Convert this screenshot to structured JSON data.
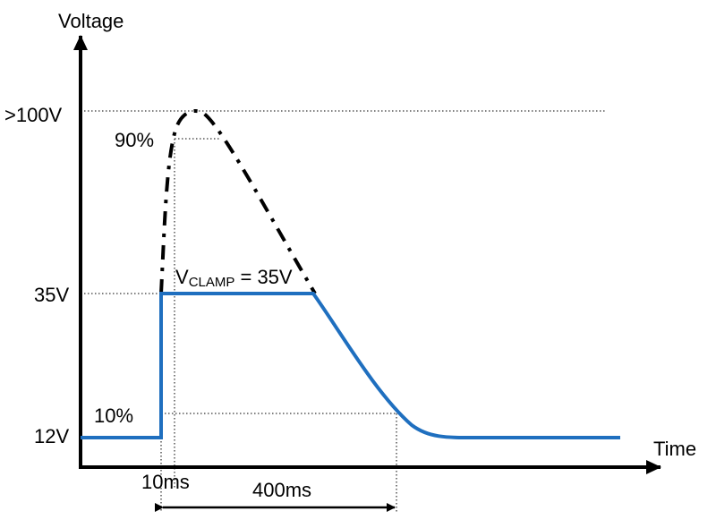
{
  "axes": {
    "y_label": "Voltage",
    "x_label": "Time"
  },
  "levels": {
    "high": ">100V",
    "clamp": "35V",
    "base": "12V"
  },
  "percent_marks": {
    "upper": "90%",
    "lower": "10%"
  },
  "clamp_label": {
    "symbol": "V",
    "subscript": "CLAMP",
    "rest": " = 35V"
  },
  "durations": {
    "rise": "10ms",
    "decay": "400ms"
  }
}
